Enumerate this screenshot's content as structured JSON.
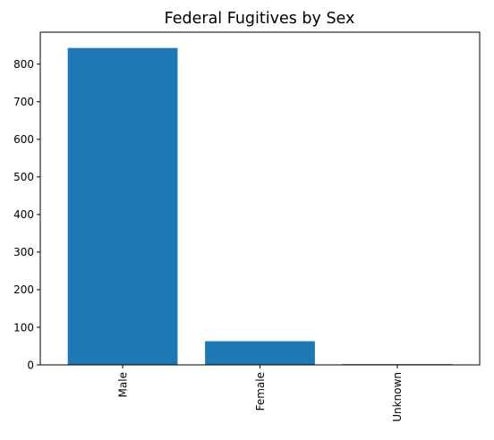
{
  "chart_data": {
    "type": "bar",
    "title": "Federal Fugitives by Sex",
    "xlabel": "",
    "ylabel": "",
    "categories": [
      "Male",
      "Female",
      "Unknown"
    ],
    "values": [
      843,
      63,
      2
    ],
    "ylim": [
      0,
      885
    ],
    "yticks": [
      0,
      100,
      200,
      300,
      400,
      500,
      600,
      700,
      800
    ],
    "ytick_labels": [
      "0",
      "100",
      "200",
      "300",
      "400",
      "500",
      "600",
      "700",
      "800"
    ],
    "bar_color": "#1f77b4",
    "grid": false,
    "legend": "none",
    "x_tick_rotation": "vertical"
  }
}
